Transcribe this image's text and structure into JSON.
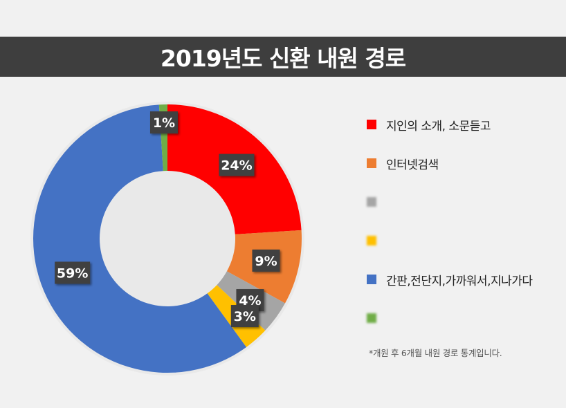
{
  "title": "2019년도 신환 내원 경로",
  "footnote": "*개원 후 6개월 내원 경로 통계입니다.",
  "chart_data": {
    "type": "pie",
    "title": "2019년도 신환 내원 경로",
    "donut": true,
    "legend_position": "right",
    "slices": [
      {
        "label": "지인의 소개, 소문듣고",
        "value": 24,
        "display": "24%",
        "color": "#ff0000",
        "blurred": false
      },
      {
        "label": "인터넷검색",
        "value": 9,
        "display": "9%",
        "color": "#ed7d31",
        "blurred": false
      },
      {
        "label": "",
        "value": 4,
        "display": "4%",
        "color": "#a5a5a5",
        "blurred": true
      },
      {
        "label": "",
        "value": 3,
        "display": "3%",
        "color": "#ffc000",
        "blurred": true
      },
      {
        "label": "간판,전단지,가까워서,지나가다",
        "value": 59,
        "display": "59%",
        "color": "#4472c4",
        "blurred": false
      },
      {
        "label": "",
        "value": 1,
        "display": "1%",
        "color": "#70ad47",
        "blurred": true
      }
    ]
  }
}
